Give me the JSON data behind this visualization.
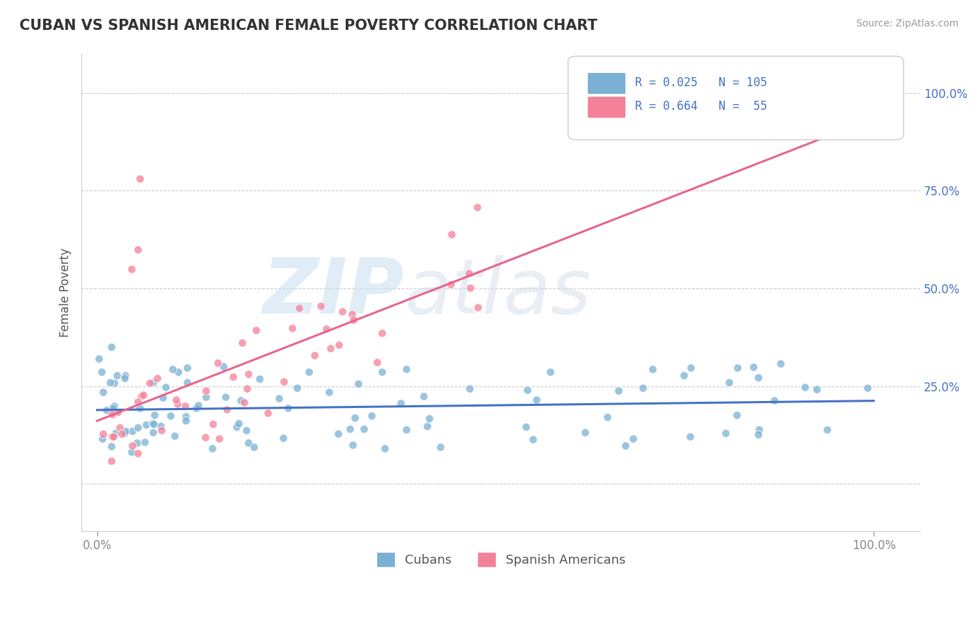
{
  "title": "CUBAN VS SPANISH AMERICAN FEMALE POVERTY CORRELATION CHART",
  "source": "Source: ZipAtlas.com",
  "ylabel": "Female Poverty",
  "watermark_zip": "ZIP",
  "watermark_atlas": "atlas",
  "cubans_color": "#7ab0d4",
  "spanish_color": "#f48099",
  "cubans_line_color": "#4472c4",
  "spanish_line_color": "#e8648a",
  "legend_label_cubans": "Cubans",
  "legend_label_spanish": "Spanish Americans",
  "title_color": "#333333",
  "title_fontsize": 15,
  "axis_color": "#cccccc",
  "grid_color": "#cccccc",
  "background_color": "#ffffff",
  "cubans_R": 0.025,
  "cubans_N": 105,
  "spanish_R": 0.664,
  "spanish_N": 55
}
